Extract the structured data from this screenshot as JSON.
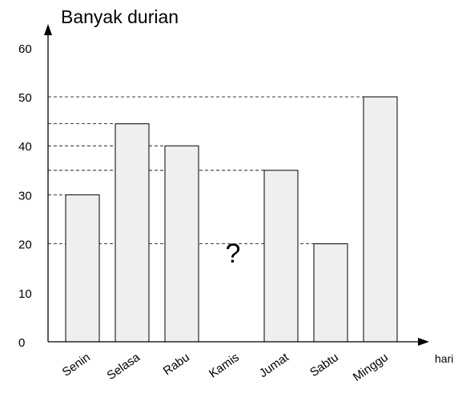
{
  "chart_data": {
    "type": "bar",
    "ylabel": "Banyak durian",
    "xlabel": "hari",
    "categories": [
      "Senin",
      "Selasa",
      "Rabu",
      "Kamis",
      "Jumat",
      "Sabtu",
      "Minggu"
    ],
    "values": [
      30,
      44.5,
      40,
      null,
      35,
      20,
      50
    ],
    "y_ticks": [
      "0",
      "10",
      "20",
      "30",
      "40",
      "50",
      "60"
    ],
    "ylim": [
      0,
      60
    ],
    "unknown_label": "?",
    "unknown_category": "Kamis",
    "unknown_label_y": 18.5,
    "guide_lines": "dashed lines from the y-axis to the top of each bar",
    "bar_fill": "#efefef",
    "bar_stroke": "#000000"
  }
}
